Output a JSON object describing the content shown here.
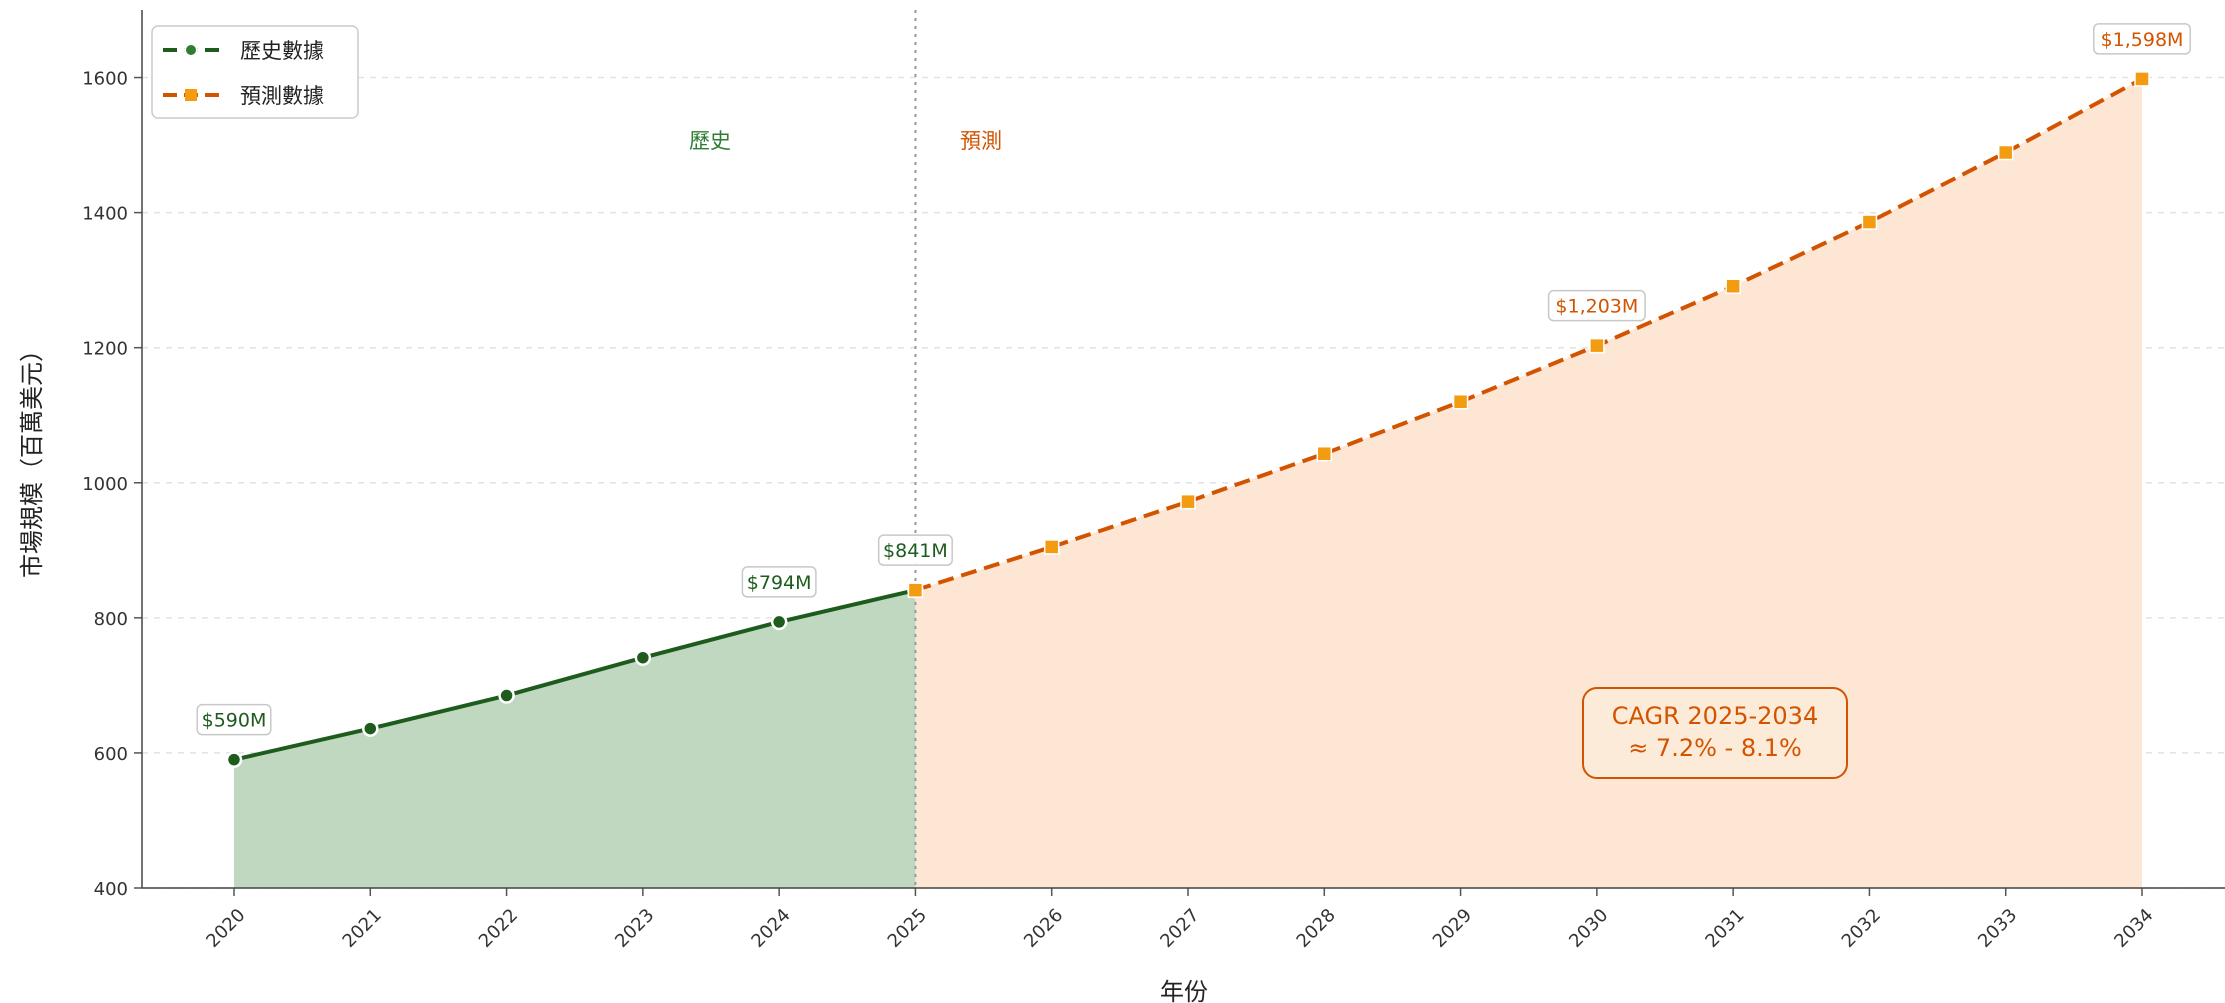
{
  "chart_data": {
    "type": "line",
    "xlabel": "年份",
    "ylabel": "市場規模（百萬美元）",
    "ylim": [
      400,
      1700
    ],
    "yticks": [
      400,
      600,
      800,
      1000,
      1200,
      1400,
      1600
    ],
    "x": [
      2020,
      2021,
      2022,
      2023,
      2024,
      2025,
      2026,
      2027,
      2028,
      2029,
      2030,
      2031,
      2032,
      2033,
      2034
    ],
    "series": [
      {
        "name": "歷史數據",
        "color": "#1e5c1e",
        "fill": "#bcd6bc",
        "style": "solid",
        "marker": "circle",
        "points": [
          [
            2020,
            590
          ],
          [
            2021,
            636
          ],
          [
            2022,
            685
          ],
          [
            2023,
            741
          ],
          [
            2024,
            794
          ],
          [
            2025,
            841
          ]
        ]
      },
      {
        "name": "預測數據",
        "color": "#d35400",
        "marker_color": "#f39c12",
        "fill": "#fde5d2",
        "style": "dashed",
        "marker": "square",
        "points": [
          [
            2025,
            841
          ],
          [
            2026,
            905
          ],
          [
            2027,
            972
          ],
          [
            2028,
            1043
          ],
          [
            2029,
            1120
          ],
          [
            2030,
            1203
          ],
          [
            2031,
            1291
          ],
          [
            2032,
            1386
          ],
          [
            2033,
            1489
          ],
          [
            2034,
            1598
          ]
        ]
      }
    ],
    "data_labels": [
      {
        "x": 2020,
        "y": 590,
        "text": "$590M",
        "series": 0
      },
      {
        "x": 2024,
        "y": 794,
        "text": "$794M",
        "series": 0
      },
      {
        "x": 2025,
        "y": 841,
        "text": "$841M",
        "series": 0
      },
      {
        "x": 2030,
        "y": 1203,
        "text": "$1,203M",
        "series": 1
      },
      {
        "x": 2034,
        "y": 1598,
        "text": "$1,598M",
        "series": 1
      }
    ],
    "phase_labels": {
      "history": "歷史",
      "forecast": "預測"
    },
    "divider_x": 2025,
    "annotation": {
      "line1": "CAGR 2025-2034",
      "line2": "≈ 7.2% - 8.1%"
    },
    "legend_position": "top-left",
    "grid": "horizontal-dashed"
  }
}
